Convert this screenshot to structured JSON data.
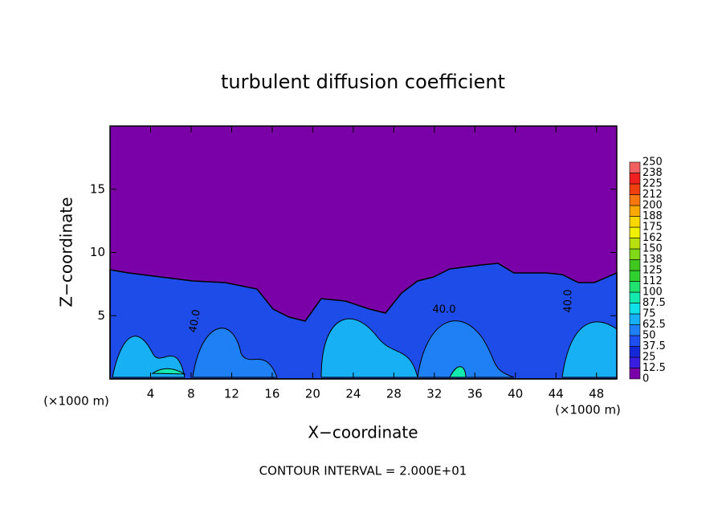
{
  "chart_data": {
    "type": "contour",
    "title": "turbulent diffusion coefficient",
    "x_label": "X−coordinate",
    "y_label": "Z−coordinate",
    "x_unit": "(×1000 m)",
    "y_unit": "(×1000 m)",
    "annotation": "CONTOUR INTERVAL = 2.000E+01",
    "contour_labels": [
      "40.0",
      "40.0",
      "40.0"
    ],
    "xlim": [
      0,
      50
    ],
    "xticks": [
      4,
      8,
      12,
      16,
      20,
      24,
      28,
      32,
      36,
      40,
      44,
      48
    ],
    "ylim": [
      0,
      20
    ],
    "yticks": [
      5,
      10,
      15
    ],
    "colorbar": {
      "ticks": [
        0,
        12.5,
        25,
        37.5,
        50,
        62.5,
        75,
        87.5,
        100,
        112,
        125,
        138,
        150,
        162,
        175,
        188,
        200,
        212,
        225,
        238,
        250
      ],
      "colors": [
        "#7a00a8",
        "#3a1ee0",
        "#1428d8",
        "#1e50f0",
        "#1f7ff5",
        "#17b0f5",
        "#10e0e8",
        "#14eab0",
        "#20e070",
        "#30d030",
        "#40c820",
        "#80d818",
        "#b8e010",
        "#f0f000",
        "#f8d800",
        "#f8a800",
        "#f87810",
        "#f04010",
        "#f02020",
        "#f06060"
      ]
    }
  }
}
